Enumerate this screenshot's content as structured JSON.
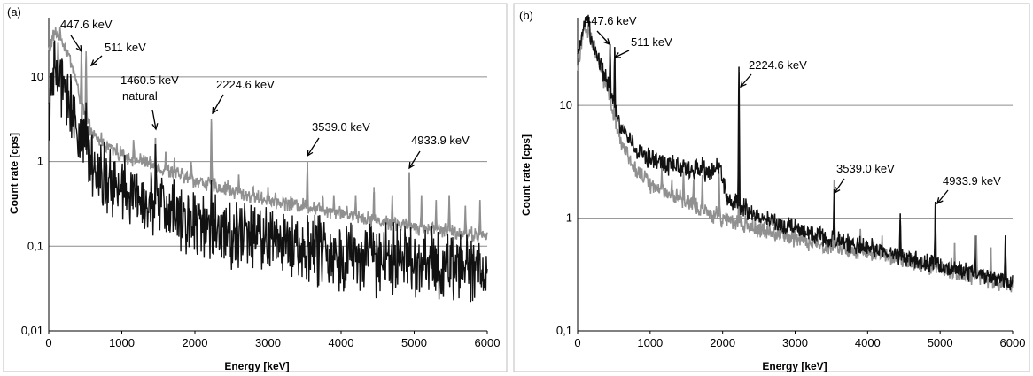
{
  "chart_data": [
    {
      "panel": "(a)",
      "type": "line",
      "xlabel": "Energy [keV]",
      "ylabel": "Count rate [cps]",
      "yscale": "log",
      "xlim": [
        0,
        6000
      ],
      "ylim": [
        0.01,
        50
      ],
      "x_ticks": [
        "0",
        "1000",
        "2000",
        "3000",
        "4000",
        "5000",
        "6000"
      ],
      "y_ticks": [
        {
          "value": 0.01,
          "label": "0,01"
        },
        {
          "value": 0.1,
          "label": "0,1"
        },
        {
          "value": 1,
          "label": "1"
        },
        {
          "value": 10,
          "label": "10"
        }
      ],
      "grid": true,
      "series": [
        {
          "color": "#909090",
          "continuum": [
            [
              0,
              20
            ],
            [
              60,
              30
            ],
            [
              100,
              33
            ],
            [
              160,
              30
            ],
            [
              250,
              20
            ],
            [
              330,
              13
            ],
            [
              400,
              7
            ],
            [
              440,
              5
            ],
            [
              480,
              4
            ],
            [
              520,
              3
            ],
            [
              600,
              2
            ],
            [
              800,
              1.5
            ],
            [
              1000,
              1.2
            ],
            [
              1500,
              0.85
            ],
            [
              2000,
              0.6
            ],
            [
              2500,
              0.45
            ],
            [
              3000,
              0.35
            ],
            [
              3500,
              0.3
            ],
            [
              4000,
              0.25
            ],
            [
              4500,
              0.2
            ],
            [
              5000,
              0.17
            ],
            [
              5500,
              0.15
            ],
            [
              6000,
              0.13
            ]
          ],
          "noise": 0.07,
          "peaks": [
            [
              447.6,
              22
            ],
            [
              511,
              20
            ],
            [
              580,
              2.5
            ],
            [
              720,
              2.2
            ],
            [
              850,
              1.6
            ],
            [
              1000,
              1.4
            ],
            [
              1160,
              1.8
            ],
            [
              1300,
              1.2
            ],
            [
              1460.5,
              1.9
            ],
            [
              1600,
              1.3
            ],
            [
              1720,
              1.1
            ],
            [
              1950,
              1.0
            ],
            [
              2224.6,
              3.2
            ],
            [
              2450,
              0.6
            ],
            [
              2600,
              0.7
            ],
            [
              2800,
              0.5
            ],
            [
              3000,
              0.5
            ],
            [
              3539,
              1.0
            ],
            [
              3750,
              0.4
            ],
            [
              3900,
              0.4
            ],
            [
              4200,
              0.4
            ],
            [
              4450,
              0.5
            ],
            [
              4700,
              0.4
            ],
            [
              4933.9,
              0.75
            ],
            [
              5100,
              0.4
            ],
            [
              5300,
              0.35
            ],
            [
              5480,
              0.4
            ],
            [
              5700,
              0.3
            ],
            [
              5900,
              0.35
            ]
          ]
        },
        {
          "color": "#111111",
          "continuum": [
            [
              0,
              3
            ],
            [
              30,
              7
            ],
            [
              60,
              10
            ],
            [
              100,
              12
            ],
            [
              150,
              9
            ],
            [
              250,
              6
            ],
            [
              350,
              3.5
            ],
            [
              450,
              2
            ],
            [
              520,
              1.3
            ],
            [
              600,
              1
            ],
            [
              700,
              0.8
            ],
            [
              800,
              0.6
            ],
            [
              1000,
              0.45
            ],
            [
              1500,
              0.3
            ],
            [
              2000,
              0.2
            ],
            [
              2500,
              0.15
            ],
            [
              3000,
              0.12
            ],
            [
              3500,
              0.1
            ],
            [
              4000,
              0.08
            ],
            [
              4500,
              0.07
            ],
            [
              5000,
              0.065
            ],
            [
              5500,
              0.06
            ],
            [
              6000,
              0.055
            ]
          ],
          "noise": 0.32,
          "peaks": [
            [
              511,
              5
            ],
            [
              1460.5,
              1.6
            ],
            [
              2224.6,
              0.6
            ],
            [
              3539,
              0.12
            ],
            [
              4933.9,
              0.1
            ]
          ]
        }
      ],
      "annotations": [
        {
          "text": "447.6 keV",
          "x": 447.6
        },
        {
          "text": "511 keV",
          "x": 511
        },
        {
          "text": "1460.5 keV",
          "text2": "natural",
          "x": 1460.5
        },
        {
          "text": "2224.6 keV",
          "x": 2224.6
        },
        {
          "text": "3539.0 keV",
          "x": 3539
        },
        {
          "text": "4933.9 keV",
          "x": 4933.9
        }
      ]
    },
    {
      "panel": "(b)",
      "type": "line",
      "xlabel": "Energy [keV]",
      "ylabel": "Count rate [cps]",
      "yscale": "log",
      "xlim": [
        0,
        6000
      ],
      "ylim": [
        0.1,
        60
      ],
      "x_ticks": [
        "0",
        "1000",
        "2000",
        "3000",
        "4000",
        "5000",
        "6000"
      ],
      "y_ticks": [
        {
          "value": 0.1,
          "label": "0,1"
        },
        {
          "value": 1,
          "label": "1"
        },
        {
          "value": 10,
          "label": "10"
        }
      ],
      "grid": true,
      "series": [
        {
          "color": "#909090",
          "continuum": [
            [
              0,
              22
            ],
            [
              60,
              38
            ],
            [
              100,
              50
            ],
            [
              150,
              45
            ],
            [
              250,
              30
            ],
            [
              350,
              18
            ],
            [
              450,
              11
            ],
            [
              520,
              7
            ],
            [
              600,
              4.5
            ],
            [
              800,
              2.8
            ],
            [
              1000,
              2.0
            ],
            [
              1500,
              1.4
            ],
            [
              2000,
              1.0
            ],
            [
              2500,
              0.8
            ],
            [
              3000,
              0.65
            ],
            [
              3500,
              0.55
            ],
            [
              4000,
              0.5
            ],
            [
              4500,
              0.42
            ],
            [
              5000,
              0.36
            ],
            [
              5500,
              0.3
            ],
            [
              6000,
              0.26
            ]
          ],
          "noise": 0.06,
          "peaks": [
            [
              447.6,
              32
            ],
            [
              511,
              30
            ],
            [
              1160,
              2.8
            ],
            [
              1300,
              2.2
            ],
            [
              1460.5,
              2.6
            ],
            [
              1600,
              2.2
            ],
            [
              1720,
              2.4
            ],
            [
              1950,
              2.6
            ],
            [
              2224.6,
              2.2
            ],
            [
              2450,
              0.9
            ],
            [
              2700,
              0.8
            ],
            [
              3000,
              0.8
            ],
            [
              3539,
              2.2
            ],
            [
              3900,
              0.8
            ],
            [
              4200,
              0.7
            ],
            [
              4450,
              1.0
            ],
            [
              4933.9,
              1.3
            ],
            [
              5200,
              0.6
            ],
            [
              5500,
              0.7
            ],
            [
              5700,
              0.55
            ],
            [
              5900,
              0.7
            ]
          ]
        },
        {
          "color": "#111111",
          "continuum": [
            [
              0,
              25
            ],
            [
              60,
              40
            ],
            [
              100,
              55
            ],
            [
              150,
              50
            ],
            [
              250,
              30
            ],
            [
              350,
              20
            ],
            [
              450,
              14
            ],
            [
              520,
              9
            ],
            [
              600,
              6.5
            ],
            [
              800,
              4.2
            ],
            [
              1000,
              3.3
            ],
            [
              1200,
              3.0
            ],
            [
              1500,
              2.8
            ],
            [
              1800,
              2.6
            ],
            [
              1900,
              2.7
            ],
            [
              1960,
              3.0
            ],
            [
              2000,
              2.0
            ],
            [
              2100,
              1.4
            ],
            [
              2300,
              1.2
            ],
            [
              2500,
              1.05
            ],
            [
              3000,
              0.8
            ],
            [
              3500,
              0.65
            ],
            [
              4000,
              0.55
            ],
            [
              4500,
              0.45
            ],
            [
              5000,
              0.38
            ],
            [
              5500,
              0.32
            ],
            [
              6000,
              0.27
            ]
          ],
          "noise": 0.07,
          "peaks": [
            [
              447.6,
              35
            ],
            [
              511,
              33
            ],
            [
              1460.5,
              3.3
            ],
            [
              1720,
              3.5
            ],
            [
              2224.6,
              22
            ],
            [
              2950,
              1.0
            ],
            [
              3539,
              1.8
            ],
            [
              4450,
              1.1
            ],
            [
              4933.9,
              1.4
            ],
            [
              5480,
              0.7
            ],
            [
              5900,
              0.7
            ]
          ]
        }
      ],
      "annotations": [
        {
          "text": "447.6 keV",
          "x": 447.6
        },
        {
          "text": "511 keV",
          "x": 511
        },
        {
          "text": "2224.6 keV",
          "x": 2224.6
        },
        {
          "text": "3539.0 keV",
          "x": 3539
        },
        {
          "text": "4933.9 keV",
          "x": 4933.9
        }
      ]
    }
  ]
}
